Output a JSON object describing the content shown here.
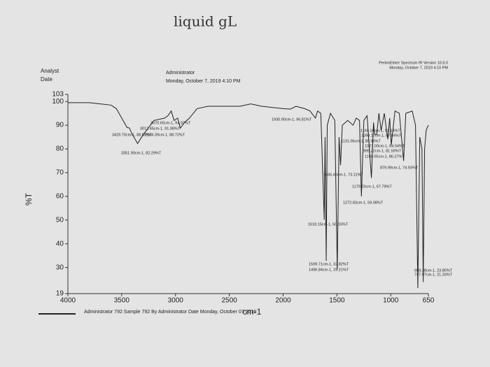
{
  "chart_data": {
    "type": "line",
    "handwritten_note": "liquid gL",
    "header": {
      "analyst_label": "Analyst",
      "date_label": "Date",
      "analyst": "Administrator",
      "date": "Monday, October 7, 2019 4:10 PM",
      "software": "PerkinElmer Spectrum IR Version 10.6.0",
      "software_date": "Monday, October 7, 2019 4:10 PM"
    },
    "footer": "Administrator 792   Sample 792 By Administrator Date Monday, October 07 2019",
    "x_label": "cm-1",
    "y_label": "%T",
    "xlim": [
      4000,
      650
    ],
    "ylim": [
      19,
      103
    ],
    "xticks": [
      4000,
      3500,
      3000,
      2500,
      2000,
      1500,
      1000,
      650
    ],
    "yticks": [
      103,
      100,
      90,
      80,
      70,
      60,
      50,
      40,
      30,
      19
    ],
    "series": [
      {
        "name": "Sample 792",
        "color": "#222222",
        "x": [
          4000,
          3800,
          3700,
          3600,
          3550,
          3500,
          3450,
          3429.7,
          3400,
          3351.9,
          3300,
          3200,
          3100,
          3070.65,
          3040,
          3012.45,
          2980,
          2954.39,
          2920,
          2870,
          2800,
          2700,
          2600,
          2500,
          2400,
          2300,
          2200,
          2100,
          2000,
          1930.9,
          1880,
          1800,
          1750,
          1700,
          1680,
          1650,
          1618.15,
          1610,
          1599.71,
          1590,
          1560,
          1520,
          1496.84,
          1480,
          1466.4,
          1450,
          1400,
          1350,
          1320,
          1290,
          1272.83,
          1250,
          1220,
          1179.23,
          1160,
          1150,
          1131,
          1110,
          1090,
          1060,
          1027,
          1010,
          995.22,
          960,
          920,
          879.99,
          860,
          800,
          770,
          747.97,
          730,
          710,
          698.38,
          685,
          670,
          650
        ],
        "values": [
          99.5,
          99.5,
          99,
          98.5,
          97,
          93,
          89,
          88.89,
          86,
          82.29,
          86,
          92,
          93,
          94.02,
          96,
          91.98,
          93,
          88.72,
          91,
          93,
          97,
          98,
          98,
          98,
          98,
          99,
          98,
          97.5,
          97,
          96.81,
          98,
          97,
          96,
          93,
          96,
          95,
          50.15,
          85,
          32.82,
          90,
          95,
          92,
          29.21,
          85,
          73.11,
          90,
          92,
          90,
          93,
          92,
          59.98,
          92,
          94,
          67.79,
          91.13,
          86.27,
          85.96,
          95,
          87.84,
          95,
          84.04,
          93,
          81.59,
          96,
          95,
          74.93,
          95,
          96,
          90,
          21.33,
          85,
          80,
          23.85,
          80,
          88,
          90
        ]
      }
    ],
    "annotations": [
      "3070.65cm-1, 94.02%T",
      "3012.45cm-1, 91.98%T",
      "3429.70cm-1, 88.89%T",
      "2954.39cm-1, 88.72%T",
      "3351.90cm-1, 82.29%T",
      "1930.90cm-1, 96.81%T",
      "1160.16cm-1, 91.13%T",
      "1090.17cm-1, 87.84%T",
      "1131.06cm-1, 85.96%T",
      "1027.00cm-1, 84.04%T",
      "995.22cm-1, 81.59%T",
      "1150.05cm-1, 86.27%T",
      "879.99cm-1, 74.93%T",
      "1466.40cm-1, 73.11%T",
      "1179.23cm-1, 67.79%T",
      "1272.83cm-1, 59.98%T",
      "1618.15cm-1, 50.15%T",
      "1599.71cm-1, 32.82%T",
      "1496.84cm-1, 29.21%T",
      "698.38cm-1, 23.85%T",
      "747.97cm-1, 21.33%T"
    ]
  }
}
